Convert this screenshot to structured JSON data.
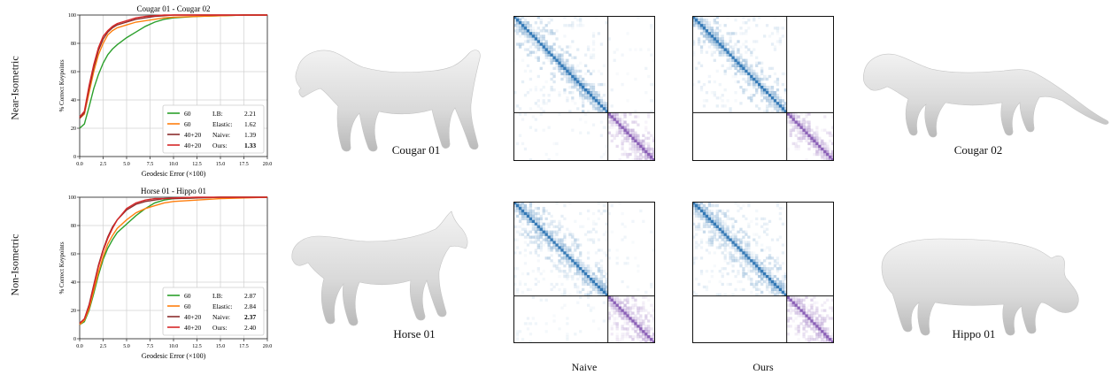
{
  "rows": [
    {
      "label": "Near-Isometric",
      "source_caption": "Cougar 01",
      "target_caption": "Cougar 02"
    },
    {
      "label": "Non-Isometric",
      "source_caption": "Horse 01",
      "target_caption": "Hippo 01"
    }
  ],
  "column_captions": {
    "naive": "Naive",
    "ours": "Ours"
  },
  "series_colors": [
    "#2ca02c",
    "#ff7f0e",
    "#8c2d2d",
    "#d62728"
  ],
  "chart_data": [
    {
      "type": "line",
      "title": "Cougar 01 - Cougar 02",
      "xlabel": "Geodesic Error (×100)",
      "ylabel": "% Correct Keypoints",
      "xlim": [
        0,
        20
      ],
      "ylim": [
        0,
        100
      ],
      "xticks": [
        "0.0",
        "2.5",
        "5.0",
        "7.5",
        "10.0",
        "12.5",
        "15.0",
        "17.5",
        "20.0"
      ],
      "yticks": [
        "0",
        "20",
        "40",
        "60",
        "80",
        "100"
      ],
      "grid": true,
      "legend_position": "bottom-right",
      "x": [
        0,
        0.5,
        1,
        1.5,
        2,
        2.5,
        3,
        3.5,
        4,
        5,
        6,
        7,
        8,
        9,
        10,
        12.5,
        15,
        17.5,
        20
      ],
      "series": [
        {
          "size": "60",
          "method": "LB:",
          "score": "2.21",
          "bold": false,
          "values": [
            20,
            23,
            35,
            48,
            58,
            66,
            72,
            76,
            79,
            84,
            88,
            92,
            95,
            97,
            98,
            99,
            99.5,
            100,
            100
          ]
        },
        {
          "size": "60",
          "method": "Elastic:",
          "score": "1.62",
          "bold": false,
          "values": [
            27,
            30,
            45,
            60,
            72,
            80,
            86,
            89,
            91,
            93,
            95,
            96,
            97,
            98,
            98.5,
            99,
            99.5,
            100,
            100
          ]
        },
        {
          "size": "40+20",
          "method": "Naive:",
          "score": "1.39",
          "bold": false,
          "values": [
            27,
            31,
            48,
            63,
            75,
            83,
            88,
            91,
            93,
            95,
            97,
            98,
            99,
            99.5,
            100,
            100,
            100,
            100,
            100
          ]
        },
        {
          "size": "40+20",
          "method": "Ours:",
          "score": "1.33",
          "bold": true,
          "values": [
            28,
            32,
            50,
            65,
            77,
            85,
            89,
            92,
            94,
            96,
            98,
            99,
            99.5,
            100,
            100,
            100,
            100,
            100,
            100
          ]
        }
      ]
    },
    {
      "type": "line",
      "title": "Horse 01 - Hippo 01",
      "xlabel": "Geodesic Error (×100)",
      "ylabel": "% Correct Keypoints",
      "xlim": [
        0,
        20
      ],
      "ylim": [
        0,
        100
      ],
      "xticks": [
        "0.0",
        "2.5",
        "5.0",
        "7.5",
        "10.0",
        "12.5",
        "15.0",
        "17.5",
        "20.0"
      ],
      "yticks": [
        "0",
        "20",
        "40",
        "60",
        "80",
        "100"
      ],
      "grid": true,
      "legend_position": "bottom-right",
      "x": [
        0,
        0.5,
        1,
        1.5,
        2,
        2.5,
        3,
        3.5,
        4,
        5,
        6,
        7,
        8,
        9,
        10,
        12.5,
        15,
        17.5,
        20
      ],
      "series": [
        {
          "size": "60",
          "method": "LB:",
          "score": "2.87",
          "bold": false,
          "values": [
            10,
            12,
            20,
            32,
            45,
            56,
            64,
            70,
            75,
            81,
            87,
            92,
            96,
            98,
            99,
            99.5,
            100,
            100,
            100
          ]
        },
        {
          "size": "60",
          "method": "Elastic:",
          "score": "2.84",
          "bold": false,
          "values": [
            10,
            13,
            21,
            34,
            47,
            58,
            67,
            73,
            78,
            84,
            89,
            92,
            94,
            96,
            97,
            98,
            99,
            99.5,
            100
          ]
        },
        {
          "size": "40+20",
          "method": "Naive:",
          "score": "2.37",
          "bold": true,
          "values": [
            11,
            14,
            24,
            38,
            52,
            63,
            72,
            79,
            84,
            91,
            95,
            97,
            98,
            99,
            99,
            99.5,
            100,
            100,
            100
          ]
        },
        {
          "size": "40+20",
          "method": "Ours:",
          "score": "2.40",
          "bold": false,
          "values": [
            11,
            14,
            23,
            37,
            51,
            62,
            71,
            78,
            84,
            92,
            96,
            98,
            99,
            99,
            99.5,
            100,
            100,
            100,
            100
          ]
        }
      ]
    }
  ]
}
